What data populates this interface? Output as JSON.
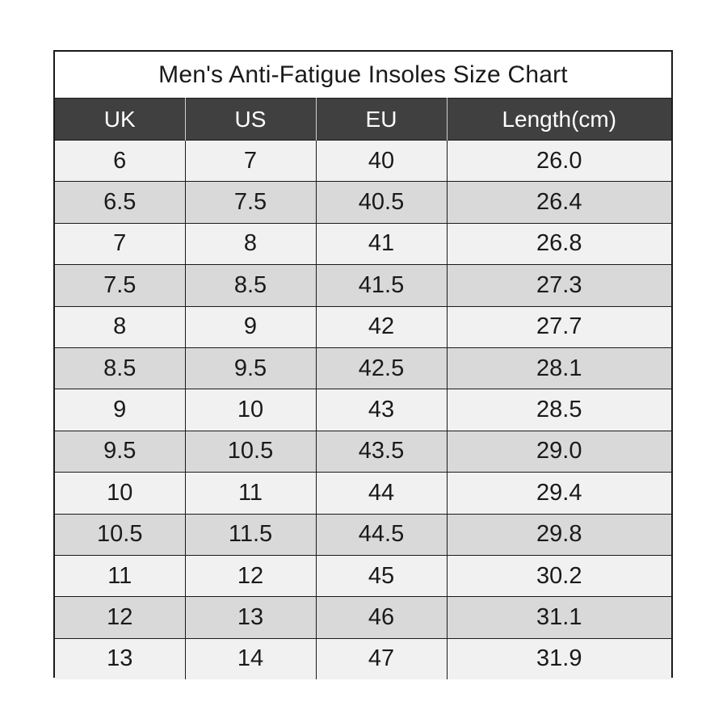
{
  "title": "Men's Anti-Fatigue Insoles Size Chart",
  "colors": {
    "header_bg": "#404040",
    "header_text": "#ffffff",
    "row_light": "#f1f1f1",
    "row_dark": "#d9d9d9",
    "border": "#1a1a1a"
  },
  "table": {
    "headers": [
      "UK",
      "US",
      "EU",
      "Length(cm)"
    ],
    "rows": [
      [
        "6",
        "7",
        "40",
        "26.0"
      ],
      [
        "6.5",
        "7.5",
        "40.5",
        "26.4"
      ],
      [
        "7",
        "8",
        "41",
        "26.8"
      ],
      [
        "7.5",
        "8.5",
        "41.5",
        "27.3"
      ],
      [
        "8",
        "9",
        "42",
        "27.7"
      ],
      [
        "8.5",
        "9.5",
        "42.5",
        "28.1"
      ],
      [
        "9",
        "10",
        "43",
        "28.5"
      ],
      [
        "9.5",
        "10.5",
        "43.5",
        "29.0"
      ],
      [
        "10",
        "11",
        "44",
        "29.4"
      ],
      [
        "10.5",
        "11.5",
        "44.5",
        "29.8"
      ],
      [
        "11",
        "12",
        "45",
        "30.2"
      ],
      [
        "12",
        "13",
        "46",
        "31.1"
      ],
      [
        "13",
        "14",
        "47",
        "31.9"
      ]
    ]
  }
}
